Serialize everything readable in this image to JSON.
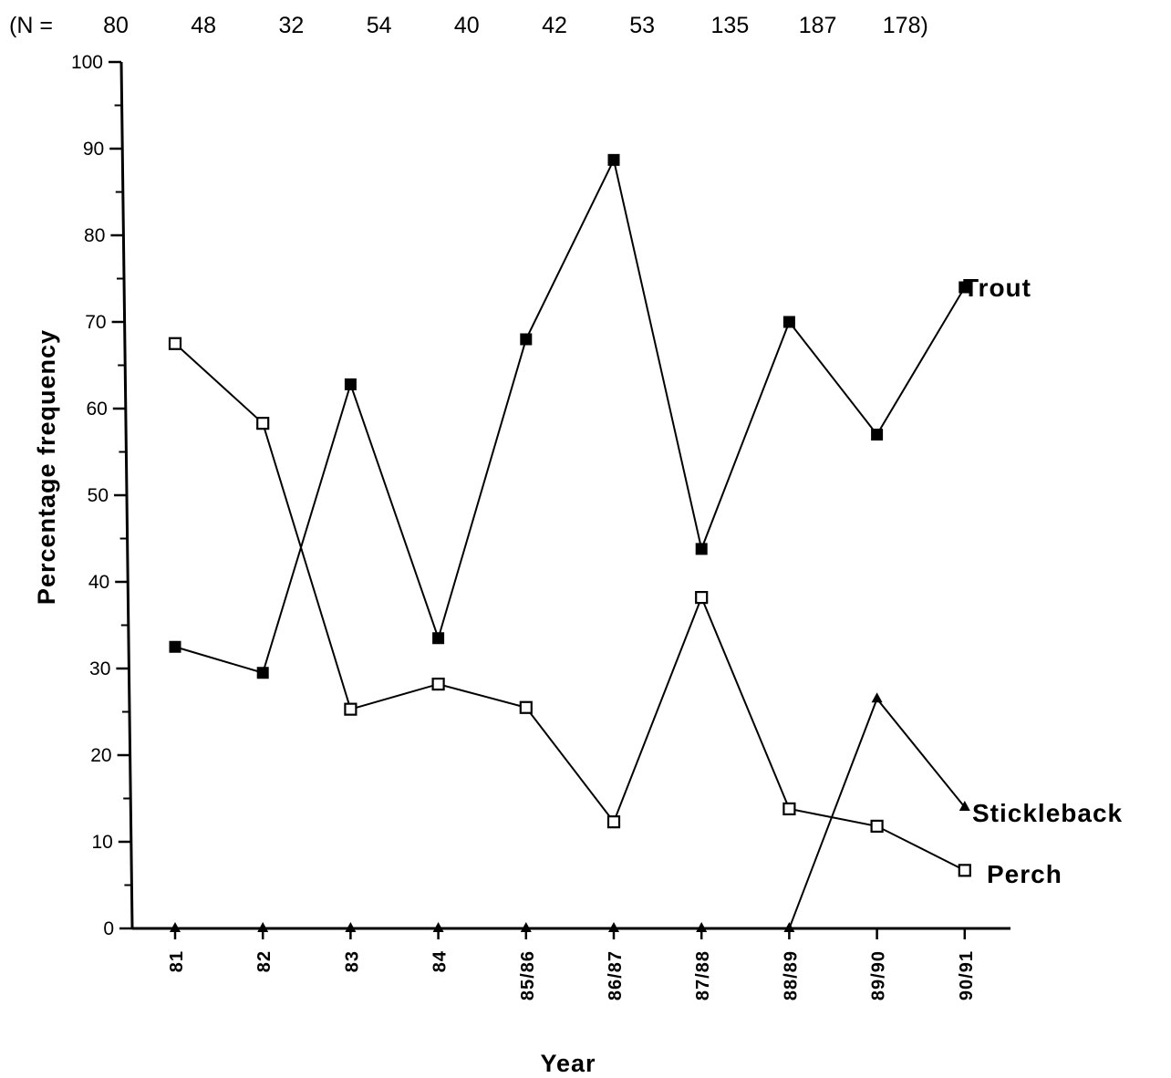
{
  "chart_data": {
    "type": "line",
    "title": "",
    "sample_sizes": {
      "prefix": "(N =",
      "labels": [
        "80",
        "48",
        "32",
        "54",
        "40",
        "42",
        "53",
        "135",
        "187",
        "178)"
      ]
    },
    "categories": [
      "81",
      "82",
      "83",
      "84",
      "85/86",
      "86/87",
      "87/88",
      "88/89",
      "89/90",
      "90/91"
    ],
    "xlabel": "Year",
    "ylabel": "Percentage frequency",
    "ylim": [
      0,
      100
    ],
    "yticks": [
      "0",
      "10",
      "20",
      "30",
      "40",
      "50",
      "60",
      "70",
      "80",
      "90",
      "100"
    ],
    "grid": false,
    "legend": "inline labels at line ends",
    "series": [
      {
        "name": "Trout",
        "marker": "filled-square",
        "values": [
          32.5,
          29.5,
          62.8,
          33.5,
          68,
          88.7,
          43.8,
          70,
          57,
          74
        ]
      },
      {
        "name": "Perch",
        "marker": "open-square",
        "values": [
          67.5,
          58.3,
          25.3,
          28.2,
          25.5,
          12.3,
          38.2,
          13.8,
          11.8,
          6.7
        ]
      },
      {
        "name": "Stickleback",
        "marker": "filled-triangle",
        "values": [
          0,
          0,
          0,
          0,
          0,
          0,
          0,
          0,
          26.5,
          14
        ]
      }
    ],
    "colors": {
      "line": "#000000",
      "background": "#ffffff"
    }
  }
}
